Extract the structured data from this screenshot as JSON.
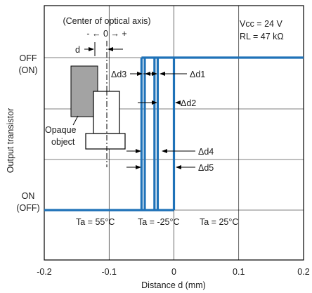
{
  "chart_data": {
    "type": "line",
    "title": "",
    "xlabel": "Distance d (mm)",
    "ylabel": "Output transistor",
    "xlim": [
      -0.2,
      0.2
    ],
    "x_ticks": [
      "-0.2",
      "-0.1",
      "0",
      "0.1",
      "0.2"
    ],
    "y_levels": [
      {
        "top": "OFF",
        "bottom": "(ON)"
      },
      {
        "top": "ON",
        "bottom": "(OFF)"
      }
    ],
    "conditions": [
      "Vcc = 24 V",
      "RL = 47 kΩ"
    ],
    "series": [
      {
        "name": "Ta = 55°C",
        "switch_x": [
          -0.05,
          -0.045
        ]
      },
      {
        "name": "Ta = -25°C",
        "switch_x": [
          -0.03,
          -0.025
        ]
      },
      {
        "name": "Ta = 25°C",
        "switch_x": [
          0.0
        ]
      }
    ],
    "deltas": [
      "Δd1",
      "Δd2",
      "Δd3",
      "Δd4",
      "Δd5"
    ],
    "inset": {
      "axis_label": "(Center of optical axis)",
      "direction_label": "- ← 0 → +",
      "d_label": "d",
      "object_label_1": "Opaque",
      "object_label_2": "object"
    },
    "colors": {
      "line": "#1f72b8",
      "frame": "#000000",
      "object": "#a3a3a3"
    }
  }
}
